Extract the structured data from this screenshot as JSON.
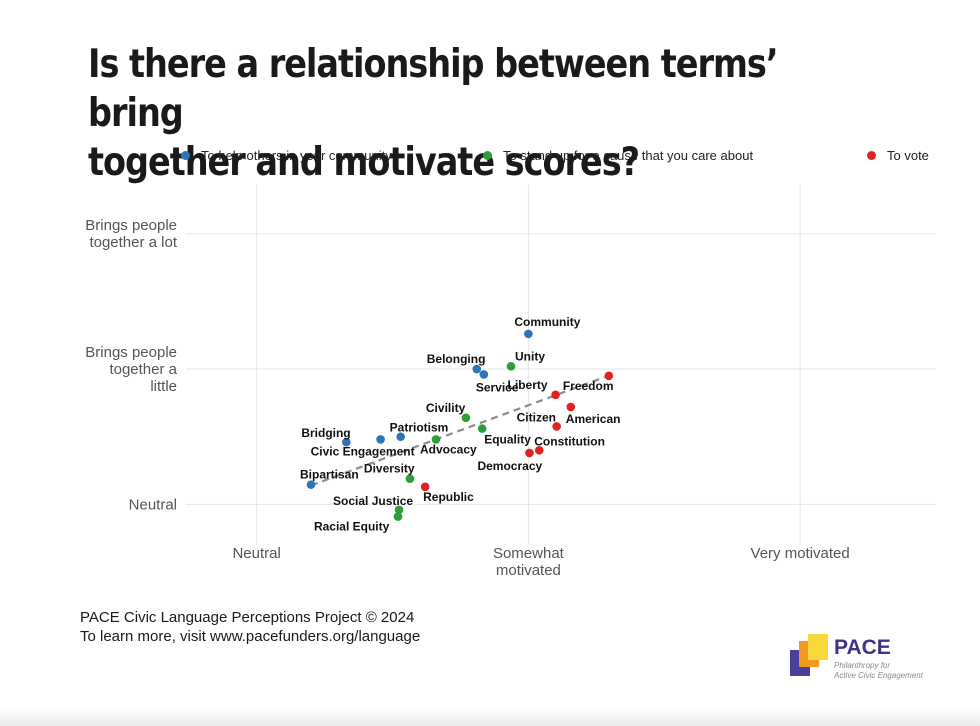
{
  "title": "Is there a relationship between terms’ bring\ntogether and motivate scores?",
  "legend": [
    {
      "label": "To help others in your community",
      "color": "#2f73b8"
    },
    {
      "label": "To stand up for a cause that you care about",
      "color": "#2e9e3a"
    },
    {
      "label": "To vote",
      "color": "#e02222"
    }
  ],
  "footer": {
    "line1": "PACE Civic Language Perceptions Project © 2024",
    "line2": "To learn more, visit www.pacefunders.org/language"
  },
  "logo": {
    "name": "PACE",
    "tagline": "Philanthropy for\nActive Civic Engagement"
  },
  "chart_data": {
    "type": "scatter",
    "xlabel": "",
    "ylabel": "",
    "xlim": [
      -0.13,
      1.25
    ],
    "ylim": [
      -0.15,
      1.18
    ],
    "x_ticks": [
      {
        "value": 0,
        "label": "Neutral"
      },
      {
        "value": 0.5,
        "label": "Somewhat\nmotivated"
      },
      {
        "value": 1,
        "label": "Very motivated"
      }
    ],
    "y_ticks": [
      {
        "value": 0,
        "label": "Neutral"
      },
      {
        "value": 0.5,
        "label": "Brings people\ntogether a\nlittle"
      },
      {
        "value": 1,
        "label": "Brings people\ntogether a lot"
      }
    ],
    "grid": true,
    "legend_position": "top",
    "trendline": {
      "style": "dashed",
      "color": "#8c8c8c",
      "x": [
        0.1,
        0.64
      ],
      "y": [
        0.07,
        0.47
      ]
    },
    "series": [
      {
        "name": "To help others in your community",
        "color": "#2f73b8",
        "points": [
          {
            "label": "Community",
            "x": 0.5,
            "y": 0.63
          },
          {
            "label": "Belonging",
            "x": 0.405,
            "y": 0.5
          },
          {
            "label": "Service",
            "x": 0.418,
            "y": 0.48
          },
          {
            "label": "Patriotism",
            "x": 0.265,
            "y": 0.25
          },
          {
            "label": "Bridging",
            "x": 0.165,
            "y": 0.23
          },
          {
            "label": "Civic Engagement",
            "x": 0.228,
            "y": 0.24
          },
          {
            "label": "Bipartisan",
            "x": 0.1,
            "y": 0.073
          }
        ]
      },
      {
        "name": "To stand up for a cause that you care about",
        "color": "#2e9e3a",
        "points": [
          {
            "label": "Unity",
            "x": 0.468,
            "y": 0.51
          },
          {
            "label": "Civility",
            "x": 0.385,
            "y": 0.32
          },
          {
            "label": "Equality",
            "x": 0.415,
            "y": 0.28
          },
          {
            "label": "Advocacy",
            "x": 0.33,
            "y": 0.24
          },
          {
            "label": "Diversity",
            "x": 0.282,
            "y": 0.095
          },
          {
            "label": "Social Justice",
            "x": 0.262,
            "y": -0.02
          },
          {
            "label": "Racial Equity",
            "x": 0.26,
            "y": -0.045
          }
        ]
      },
      {
        "name": "To vote",
        "color": "#e02222",
        "points": [
          {
            "label": "Freedom",
            "x": 0.648,
            "y": 0.475
          },
          {
            "label": "Liberty",
            "x": 0.55,
            "y": 0.405
          },
          {
            "label": "American",
            "x": 0.578,
            "y": 0.36
          },
          {
            "label": "Citizen",
            "x": 0.552,
            "y": 0.288
          },
          {
            "label": "Constitution",
            "x": 0.52,
            "y": 0.2
          },
          {
            "label": "Democracy",
            "x": 0.502,
            "y": 0.19
          },
          {
            "label": "Republic",
            "x": 0.31,
            "y": 0.065
          }
        ]
      }
    ]
  }
}
